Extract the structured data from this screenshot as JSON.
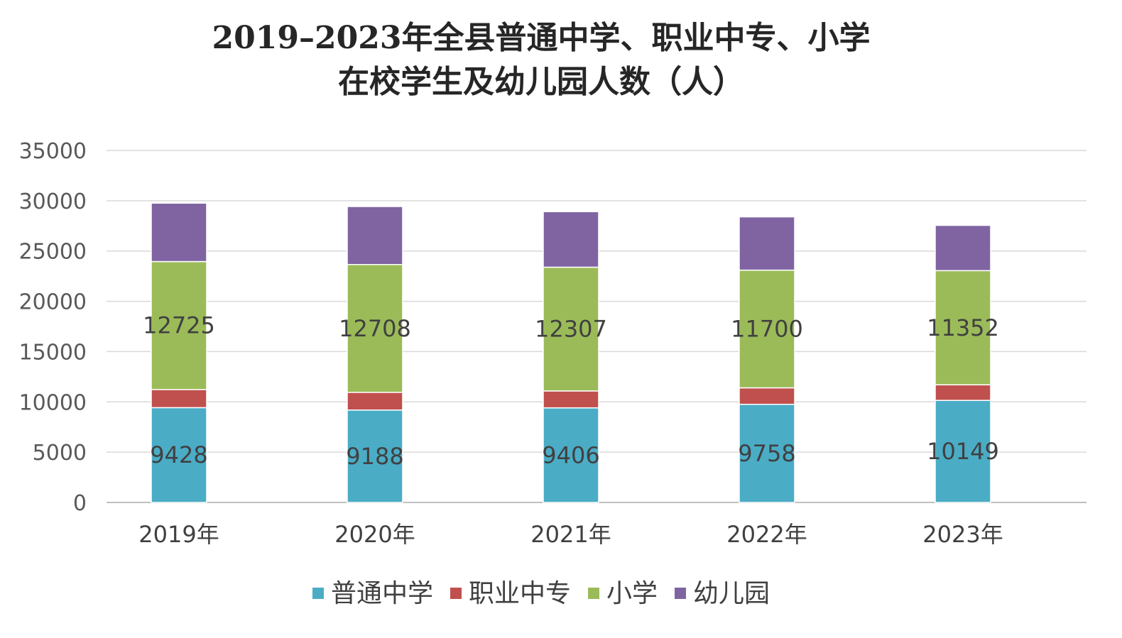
{
  "chart_data": {
    "type": "bar",
    "stacked": true,
    "title": "2019–2023年全县普通中学、职业中专、小学",
    "subtitle": "在校学生及幼儿园人数（人）",
    "xlabel": "",
    "ylabel": "",
    "ylim": [
      0,
      35000
    ],
    "y_ticks": [
      "0",
      "5000",
      "10000",
      "15000",
      "20000",
      "25000",
      "30000",
      "35000"
    ],
    "categories": [
      "2019年",
      "2020年",
      "2021年",
      "2022年",
      "2023年"
    ],
    "grid": true,
    "legend_position": "bottom",
    "series": [
      {
        "name": "普通中学",
        "color": "#4bacc6",
        "values": [
          9428,
          9188,
          9406,
          9758,
          10149
        ],
        "labels": [
          "9428",
          "9188",
          "9406",
          "9758",
          "10149"
        ]
      },
      {
        "name": "职业中专",
        "color": "#c0504d",
        "values": [
          1800,
          1760,
          1680,
          1640,
          1550
        ],
        "labels": [
          "",
          "",
          "",
          "",
          ""
        ]
      },
      {
        "name": "小学",
        "color": "#9bbb59",
        "values": [
          12725,
          12708,
          12307,
          11700,
          11352
        ],
        "labels": [
          "12725",
          "12708",
          "12307",
          "11700",
          "11352"
        ]
      },
      {
        "name": "幼儿园",
        "color": "#8064a2",
        "values": [
          5807,
          5770,
          5520,
          5300,
          4500
        ],
        "labels": [
          "",
          "",
          "",
          "",
          ""
        ]
      }
    ]
  }
}
